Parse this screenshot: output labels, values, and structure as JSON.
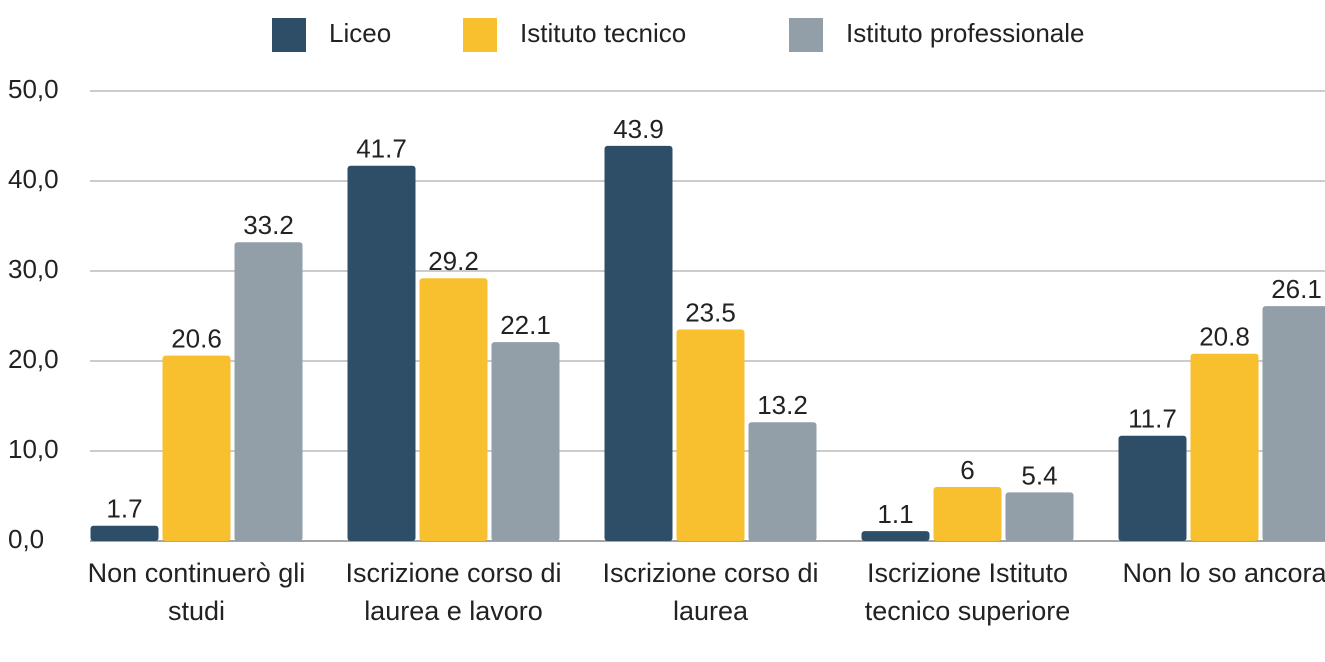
{
  "chart_data": {
    "type": "bar",
    "categories": [
      "Non continuerò gli studi",
      "Iscrizione corso di laurea e lavoro",
      "Iscrizione corso di laurea",
      "Iscrizione Istituto tecnico superiore",
      "Non lo so ancora"
    ],
    "series": [
      {
        "name": "Liceo",
        "color": "#2e4d66",
        "values": [
          1.7,
          41.7,
          43.9,
          1.1,
          11.7
        ]
      },
      {
        "name": "Istituto tecnico",
        "color": "#f8bf2f",
        "values": [
          20.6,
          29.2,
          23.5,
          6,
          20.8
        ]
      },
      {
        "name": "Istituto professionale",
        "color": "#929fa9",
        "values": [
          33.2,
          22.1,
          13.2,
          5.4,
          26.1
        ]
      }
    ],
    "ylim": [
      0,
      50
    ],
    "yticks": [
      {
        "value": 0,
        "label": "0,0"
      },
      {
        "value": 10,
        "label": "10,0"
      },
      {
        "value": 20,
        "label": "20,0"
      },
      {
        "value": 30,
        "label": "30,0"
      },
      {
        "value": 40,
        "label": "40,0"
      },
      {
        "value": 50,
        "label": "50,0"
      }
    ],
    "grid": true,
    "legend": "top"
  }
}
